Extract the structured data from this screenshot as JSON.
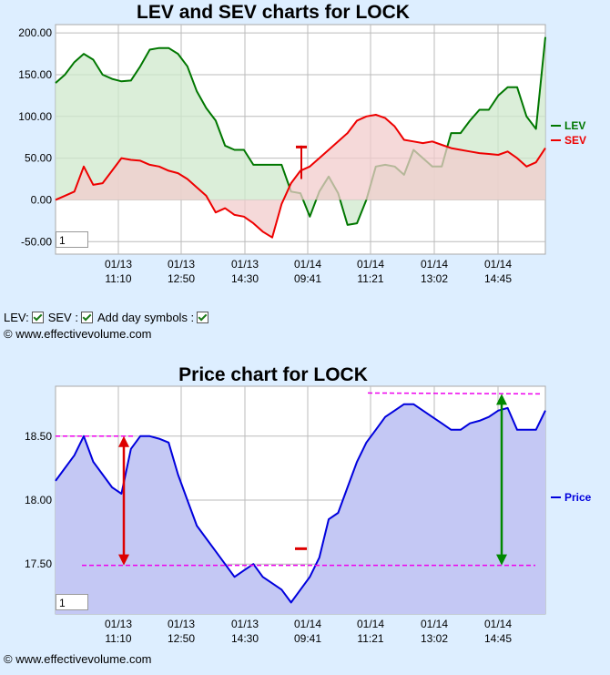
{
  "chart_data": [
    {
      "type": "area",
      "title": "LEV and SEV charts for LOCK",
      "ylim": [
        -65,
        210
      ],
      "y_ticks": [
        "-50.00",
        "0.00",
        "50.00",
        "100.00",
        "150.00",
        "200.00"
      ],
      "x_tick_labels": [
        [
          "01/13",
          "11:10"
        ],
        [
          "01/13",
          "12:50"
        ],
        [
          "01/13",
          "14:30"
        ],
        [
          "01/14",
          "09:41"
        ],
        [
          "01/14",
          "11:21"
        ],
        [
          "01/14",
          "13:02"
        ],
        [
          "01/14",
          "14:45"
        ]
      ],
      "series": [
        {
          "name": "LEV",
          "color": "#007700",
          "fill": "#cfe8cc",
          "values": [
            140,
            150,
            165,
            175,
            168,
            150,
            145,
            142,
            143,
            160,
            180,
            182,
            182,
            175,
            160,
            130,
            110,
            95,
            65,
            60,
            60,
            42,
            42,
            42,
            42,
            10,
            8,
            -20,
            10,
            28,
            8,
            -30,
            -28,
            0,
            40,
            42,
            40,
            30,
            60,
            50,
            40,
            40,
            80,
            80,
            95,
            108,
            108,
            125,
            135,
            135,
            100,
            85,
            195
          ]
        },
        {
          "name": "SEV",
          "color": "#ee0000",
          "fill": "#f2cccc",
          "values": [
            0,
            5,
            10,
            40,
            18,
            20,
            35,
            50,
            48,
            47,
            42,
            40,
            35,
            32,
            25,
            15,
            5,
            -15,
            -10,
            -18,
            -20,
            -28,
            -38,
            -45,
            -5,
            20,
            35,
            40,
            50,
            60,
            70,
            80,
            95,
            100,
            102,
            98,
            88,
            72,
            70,
            68,
            70,
            66,
            62,
            60,
            58,
            56,
            55,
            54,
            58,
            50,
            40,
            45,
            62
          ]
        }
      ],
      "zoom_value": "1"
    },
    {
      "type": "area",
      "title": "Price chart for LOCK",
      "ylim": [
        17.11,
        18.89
      ],
      "y_ticks": [
        "17.50",
        "18.00",
        "18.50"
      ],
      "x_tick_labels": [
        [
          "01/13",
          "11:10"
        ],
        [
          "01/13",
          "12:50"
        ],
        [
          "01/13",
          "14:30"
        ],
        [
          "01/14",
          "09:41"
        ],
        [
          "01/14",
          "11:21"
        ],
        [
          "01/14",
          "13:02"
        ],
        [
          "01/14",
          "14:45"
        ]
      ],
      "series": [
        {
          "name": "Price",
          "color": "#0000dd",
          "fill": "#c4c8f4",
          "values": [
            18.15,
            18.25,
            18.35,
            18.5,
            18.3,
            18.2,
            18.1,
            18.05,
            18.4,
            18.5,
            18.5,
            18.48,
            18.45,
            18.2,
            18.0,
            17.8,
            17.7,
            17.6,
            17.5,
            17.4,
            17.45,
            17.5,
            17.4,
            17.35,
            17.3,
            17.2,
            17.3,
            17.4,
            17.55,
            17.85,
            17.9,
            18.1,
            18.3,
            18.45,
            18.55,
            18.65,
            18.7,
            18.75,
            18.75,
            18.7,
            18.65,
            18.6,
            18.55,
            18.55,
            18.6,
            18.62,
            18.65,
            18.7,
            18.72,
            18.55,
            18.55,
            18.55,
            18.7
          ]
        }
      ],
      "levels": [
        18.5,
        17.49,
        18.83
      ],
      "zoom_value": "1"
    }
  ],
  "options": {
    "lev_label": "LEV:",
    "sev_label": "SEV :",
    "day_label": "Add day symbols :"
  },
  "copyright_top": "© www.effectivevolume.com",
  "copyright_bottom": "© www.effectivevolume.com"
}
